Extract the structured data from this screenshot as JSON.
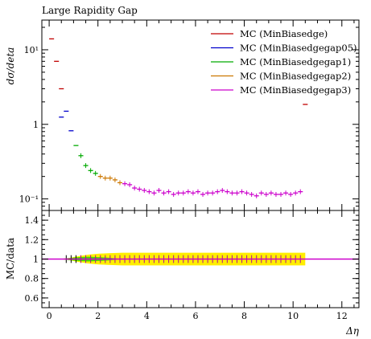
{
  "chart_data": [
    {
      "type": "scatter",
      "title": "Large Rapidity Gap",
      "ylabel": "dσ/deta",
      "xlabel": "",
      "xlim": [
        -0.3,
        12.7
      ],
      "ylim": [
        0.07,
        25
      ],
      "log_y": true,
      "x_ticks": [
        0,
        2,
        4,
        6,
        8,
        10,
        12
      ],
      "y_ticks": [
        {
          "value": 0.1,
          "label": "10⁻¹"
        },
        {
          "value": 1,
          "label": "1"
        },
        {
          "value": 10,
          "label": "10¹"
        }
      ],
      "legend_position": "top-right",
      "series": [
        {
          "name": "MC (MinBiasedge)",
          "color": "#c00000",
          "x": [
            0.1,
            0.3,
            0.5,
            10.5
          ],
          "y": [
            14,
            7.0,
            3.0,
            1.85
          ]
        },
        {
          "name": "MC (MinBiasedgegap05)",
          "color": "#0000cc",
          "x": [
            0.5,
            0.7,
            0.9
          ],
          "y": [
            1.25,
            1.5,
            0.82
          ]
        },
        {
          "name": "MC (MinBiasedgegap1)",
          "color": "#00aa00",
          "x": [
            1.1,
            1.3,
            1.5,
            1.7,
            1.9
          ],
          "y": [
            0.52,
            0.38,
            0.28,
            0.24,
            0.22
          ]
        },
        {
          "name": "MC (MinBiasedgegap2)",
          "color": "#cc7700",
          "x": [
            2.1,
            2.3,
            2.5,
            2.7,
            2.9
          ],
          "y": [
            0.2,
            0.19,
            0.19,
            0.18,
            0.165
          ]
        },
        {
          "name": "MC (MinBiasedgegap3)",
          "color": "#cc00cc",
          "x": [
            3.1,
            3.3,
            3.5,
            3.7,
            3.9,
            4.1,
            4.3,
            4.5,
            4.7,
            4.9,
            5.1,
            5.3,
            5.5,
            5.7,
            5.9,
            6.1,
            6.3,
            6.5,
            6.7,
            6.9,
            7.1,
            7.3,
            7.5,
            7.7,
            7.9,
            8.1,
            8.3,
            8.5,
            8.7,
            8.9,
            9.1,
            9.3,
            9.5,
            9.7,
            9.9,
            10.1,
            10.3
          ],
          "y": [
            0.16,
            0.155,
            0.14,
            0.135,
            0.13,
            0.125,
            0.12,
            0.13,
            0.12,
            0.125,
            0.115,
            0.12,
            0.12,
            0.125,
            0.12,
            0.125,
            0.115,
            0.12,
            0.12,
            0.125,
            0.13,
            0.125,
            0.12,
            0.12,
            0.125,
            0.12,
            0.115,
            0.11,
            0.12,
            0.115,
            0.12,
            0.115,
            0.115,
            0.12,
            0.115,
            0.12,
            0.125
          ]
        }
      ]
    },
    {
      "type": "line",
      "title": "",
      "ylabel": "MC/data",
      "xlabel": "Δη",
      "xlim": [
        -0.3,
        12.7
      ],
      "ylim": [
        0.5,
        1.5
      ],
      "x_ticks": [
        0,
        2,
        4,
        6,
        8,
        10,
        12
      ],
      "y_ticks": [
        {
          "value": 0.6,
          "label": "0.6"
        },
        {
          "value": 0.8,
          "label": "0.8"
        },
        {
          "value": 1,
          "label": "1"
        },
        {
          "value": 1.2,
          "label": "1.2"
        },
        {
          "value": 1.4,
          "label": "1.4"
        }
      ],
      "reference_line": 1,
      "band_colors": {
        "outer": "#ffee00",
        "inner": "#44dd00"
      },
      "band": {
        "x": [
          0.0,
          0.4,
          0.8,
          1.2,
          1.6,
          2.0,
          2.4,
          3.0,
          4.0,
          10.5
        ],
        "outer_half_width": [
          0.0,
          0.0,
          0.01,
          0.03,
          0.045,
          0.055,
          0.06,
          0.065,
          0.065,
          0.065
        ],
        "inner_half_width": [
          0.0,
          0.0,
          0.01,
          0.02,
          0.025,
          0.02,
          0.015,
          0.0,
          0.0,
          0.0
        ]
      },
      "ratio_marker_x": [
        0.7,
        0.9,
        1.1,
        1.3,
        1.5,
        1.7,
        1.9,
        2.1,
        2.3,
        2.5,
        2.7,
        2.9,
        3.1,
        3.3,
        3.5,
        3.7,
        3.9,
        4.1,
        4.3,
        4.5,
        4.7,
        4.9,
        5.1,
        5.3,
        5.5,
        5.7,
        5.9,
        6.1,
        6.3,
        6.5,
        6.7,
        6.9,
        7.1,
        7.3,
        7.5,
        7.7,
        7.9,
        8.1,
        8.3,
        8.5,
        8.7,
        8.9,
        9.1,
        9.3,
        9.5,
        9.7,
        9.9,
        10.1,
        10.3
      ]
    }
  ]
}
